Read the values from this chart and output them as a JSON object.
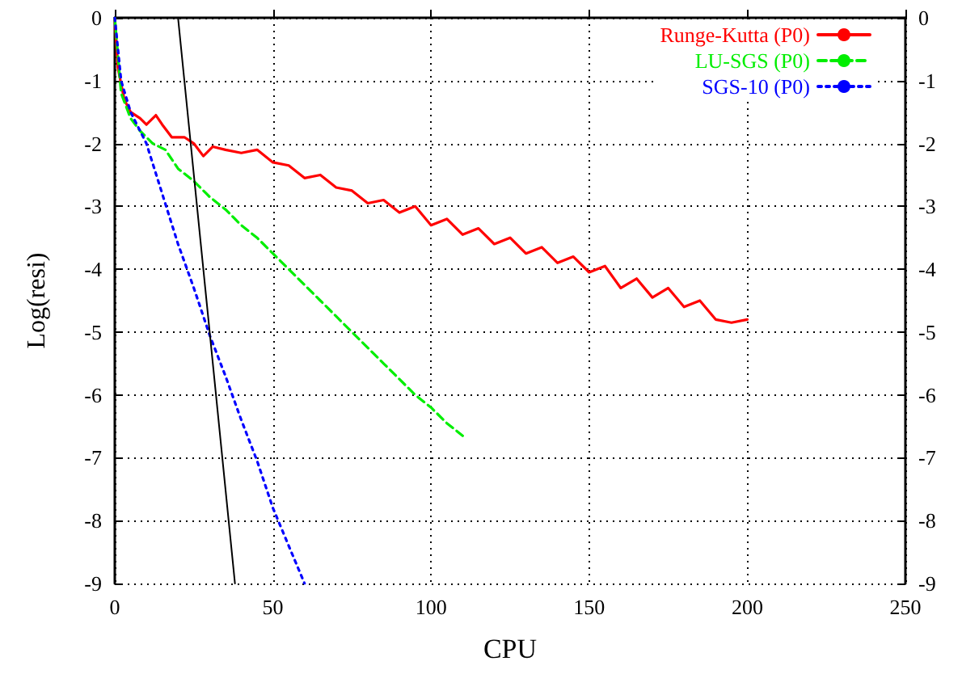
{
  "chart_data": {
    "type": "line",
    "xlabel": "CPU",
    "ylabel": "Log(resi)",
    "xlim": [
      0,
      250
    ],
    "xticks": [
      0,
      50,
      100,
      150,
      200,
      250
    ],
    "ylim": [
      -9,
      0
    ],
    "yticks": [
      -9,
      -8,
      -7,
      -6,
      -5,
      -4,
      -3,
      -2,
      -1,
      0
    ],
    "y2lim": [
      -9,
      0
    ],
    "y2ticks": [
      -9,
      -8,
      -7,
      -6,
      -5,
      -4,
      -3,
      -2,
      -1,
      0
    ],
    "grid": true,
    "legend": "top right",
    "marker": "none",
    "series": [
      {
        "name": "Runge-Kutta (P0)",
        "color": "#ff0000",
        "line_style": "solid",
        "x": [
          0,
          1,
          3,
          5,
          8,
          10,
          13,
          15,
          18,
          22,
          25,
          28,
          31,
          35,
          40,
          45,
          50,
          55,
          60,
          65,
          70,
          75,
          80,
          85,
          90,
          95,
          100,
          105,
          110,
          115,
          120,
          125,
          130,
          135,
          140,
          145,
          150,
          155,
          160,
          165,
          170,
          175,
          180,
          185,
          190,
          195,
          200
        ],
        "values": [
          0,
          -0.8,
          -1.3,
          -1.5,
          -1.6,
          -1.7,
          -1.55,
          -1.7,
          -1.9,
          -1.9,
          -2.0,
          -2.2,
          -2.05,
          -2.1,
          -2.15,
          -2.1,
          -2.3,
          -2.35,
          -2.55,
          -2.5,
          -2.7,
          -2.75,
          -2.95,
          -2.9,
          -3.1,
          -3.0,
          -3.3,
          -3.2,
          -3.45,
          -3.35,
          -3.6,
          -3.5,
          -3.75,
          -3.65,
          -3.9,
          -3.8,
          -4.05,
          -3.95,
          -4.3,
          -4.15,
          -4.45,
          -4.3,
          -4.6,
          -4.5,
          -4.8,
          -4.85,
          -4.8
        ]
      },
      {
        "name": "LU-SGS (P0)",
        "color": "#00ee00",
        "line_style": "dashed",
        "x": [
          0,
          2,
          5,
          8,
          12,
          16,
          20,
          25,
          30,
          35,
          40,
          45,
          50,
          55,
          60,
          65,
          70,
          75,
          80,
          85,
          90,
          95,
          100,
          105,
          110
        ],
        "values": [
          0,
          -1.2,
          -1.6,
          -1.8,
          -2.0,
          -2.1,
          -2.4,
          -2.6,
          -2.85,
          -3.05,
          -3.3,
          -3.5,
          -3.75,
          -4.0,
          -4.25,
          -4.5,
          -4.75,
          -5.0,
          -5.25,
          -5.5,
          -5.75,
          -6.0,
          -6.2,
          -6.45,
          -6.65
        ]
      },
      {
        "name": "SGS-10 (P0)",
        "color": "#0000ff",
        "line_style": "dotted",
        "x": [
          0,
          2,
          5,
          10,
          15,
          20,
          25,
          30,
          35,
          40,
          45,
          50,
          55,
          60
        ],
        "values": [
          0,
          -1.0,
          -1.5,
          -2.0,
          -2.8,
          -3.6,
          -4.3,
          -5.05,
          -5.7,
          -6.4,
          -7.05,
          -7.8,
          -8.4,
          -9.0
        ]
      },
      {
        "color": "#000000",
        "line_style": "solid",
        "x": [
          20,
          38
        ],
        "values": [
          0,
          -9
        ]
      }
    ]
  }
}
